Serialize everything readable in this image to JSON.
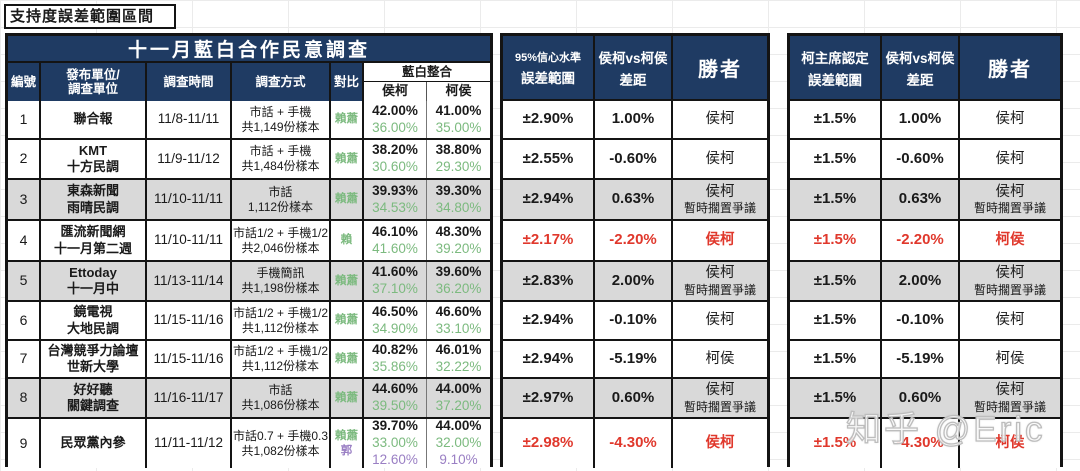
{
  "page_title": "支持度誤差範圍區間",
  "watermark": "知乎 @Eric",
  "colors": {
    "header_bg": "#1f3b63",
    "header_text": "#ffffff",
    "row_gray": "#d9d9d9",
    "green": "#7cba7f",
    "purple": "#9a7fc4",
    "red": "#e0382c"
  },
  "left_table": {
    "title": "十一月藍白合作民意調查",
    "headers": {
      "id": "編號",
      "org_line1": "發布單位/",
      "org_line2": "調查單位",
      "time": "調查時間",
      "method": "調查方式",
      "compare": "對比",
      "group": "藍白整合",
      "col_hou_ko": "侯柯",
      "col_ko_hou": "柯侯"
    }
  },
  "mid_table": {
    "headers": {
      "range_line1": "95%信心水準",
      "range_line2": "誤差範圍",
      "gap_line1": "侯柯vs柯侯",
      "gap_line2": "差距",
      "winner": "勝者"
    }
  },
  "right_table": {
    "headers": {
      "range_line1": "柯主席認定",
      "range_line2": "誤差範圍",
      "gap_line1": "侯柯vs柯侯",
      "gap_line2": "差距",
      "winner": "勝者"
    }
  },
  "rows": [
    {
      "id": "1",
      "org": [
        "聯合報"
      ],
      "time": "11/8-11/11",
      "method": [
        "市話 + 手機",
        "共1,149份樣本"
      ],
      "compare": [
        [
          "賴蕭",
          "green"
        ]
      ],
      "hou_ko": [
        [
          "42.00%",
          "black"
        ],
        [
          "36.00%",
          "green"
        ]
      ],
      "ko_hou": [
        [
          "41.00%",
          "black"
        ],
        [
          "35.00%",
          "green"
        ]
      ],
      "gray": false,
      "ci": {
        "range": "±2.90%",
        "gap": "1.00%",
        "winner": [
          "侯柯"
        ],
        "red": false
      },
      "ko": {
        "range": "±1.5%",
        "gap": "1.00%",
        "winner": [
          "侯柯"
        ],
        "red": false
      }
    },
    {
      "id": "2",
      "org": [
        "KMT",
        "十方民調"
      ],
      "time": "11/9-11/12",
      "method": [
        "市話 + 手機",
        "共1,484份樣本"
      ],
      "compare": [
        [
          "賴蕭",
          "green"
        ]
      ],
      "hou_ko": [
        [
          "38.20%",
          "black"
        ],
        [
          "30.60%",
          "green"
        ]
      ],
      "ko_hou": [
        [
          "38.80%",
          "black"
        ],
        [
          "29.30%",
          "green"
        ]
      ],
      "gray": false,
      "ci": {
        "range": "±2.55%",
        "gap": "-0.60%",
        "winner": [
          "侯柯"
        ],
        "red": false
      },
      "ko": {
        "range": "±1.5%",
        "gap": "-0.60%",
        "winner": [
          "侯柯"
        ],
        "red": false
      }
    },
    {
      "id": "3",
      "org": [
        "東森新聞",
        "雨晴民調"
      ],
      "time": "11/10-11/11",
      "method": [
        "市話",
        "1,112份樣本"
      ],
      "compare": [
        [
          "賴蕭",
          "green"
        ]
      ],
      "hou_ko": [
        [
          "39.93%",
          "black"
        ],
        [
          "34.53%",
          "green"
        ]
      ],
      "ko_hou": [
        [
          "39.30%",
          "black"
        ],
        [
          "34.80%",
          "green"
        ]
      ],
      "gray": true,
      "ci": {
        "range": "±2.94%",
        "gap": "0.63%",
        "winner": [
          "侯柯",
          "暫時擱置爭議"
        ],
        "red": false
      },
      "ko": {
        "range": "±1.5%",
        "gap": "0.63%",
        "winner": [
          "侯柯",
          "暫時擱置爭議"
        ],
        "red": false
      }
    },
    {
      "id": "4",
      "org": [
        "匯流新聞網",
        "十一月第二週"
      ],
      "time": "11/10-11/11",
      "method": [
        "市話1/2 + 手機1/2",
        "共2,046份樣本"
      ],
      "compare": [
        [
          "賴",
          "green"
        ]
      ],
      "hou_ko": [
        [
          "46.10%",
          "black"
        ],
        [
          "41.60%",
          "green"
        ]
      ],
      "ko_hou": [
        [
          "48.30%",
          "black"
        ],
        [
          "39.20%",
          "green"
        ]
      ],
      "gray": false,
      "ci": {
        "range": "±2.17%",
        "gap": "-2.20%",
        "winner": [
          "侯柯"
        ],
        "red": true
      },
      "ko": {
        "range": "±1.5%",
        "gap": "-2.20%",
        "winner": [
          "柯侯"
        ],
        "red": true
      }
    },
    {
      "id": "5",
      "org": [
        "Ettoday",
        "十一月中"
      ],
      "time": "11/13-11/14",
      "method": [
        "手機簡訊",
        "共1,198份樣本"
      ],
      "compare": [
        [
          "賴蕭",
          "green"
        ]
      ],
      "hou_ko": [
        [
          "41.60%",
          "black"
        ],
        [
          "37.10%",
          "green"
        ]
      ],
      "ko_hou": [
        [
          "39.60%",
          "black"
        ],
        [
          "36.20%",
          "green"
        ]
      ],
      "gray": true,
      "ci": {
        "range": "±2.83%",
        "gap": "2.00%",
        "winner": [
          "侯柯",
          "暫時擱置爭議"
        ],
        "red": false
      },
      "ko": {
        "range": "±1.5%",
        "gap": "2.00%",
        "winner": [
          "侯柯",
          "暫時擱置爭議"
        ],
        "red": false
      }
    },
    {
      "id": "6",
      "org": [
        "鏡電視",
        "大地民調"
      ],
      "time": "11/15-11/16",
      "method": [
        "市話1/2 + 手機1/2",
        "共1,112份樣本"
      ],
      "compare": [
        [
          "賴蕭",
          "green"
        ]
      ],
      "hou_ko": [
        [
          "46.50%",
          "black"
        ],
        [
          "34.90%",
          "green"
        ]
      ],
      "ko_hou": [
        [
          "46.60%",
          "black"
        ],
        [
          "33.10%",
          "green"
        ]
      ],
      "gray": false,
      "ci": {
        "range": "±2.94%",
        "gap": "-0.10%",
        "winner": [
          "侯柯"
        ],
        "red": false
      },
      "ko": {
        "range": "±1.5%",
        "gap": "-0.10%",
        "winner": [
          "侯柯"
        ],
        "red": false
      }
    },
    {
      "id": "7",
      "org": [
        "台灣競爭力論壇",
        "世新大學"
      ],
      "time": "11/15-11/16",
      "method": [
        "市話1/2 + 手機1/2",
        "共1,112份樣本"
      ],
      "compare": [
        [
          "賴蕭",
          "green"
        ]
      ],
      "hou_ko": [
        [
          "40.82%",
          "black"
        ],
        [
          "35.86%",
          "green"
        ]
      ],
      "ko_hou": [
        [
          "46.01%",
          "black"
        ],
        [
          "32.22%",
          "green"
        ]
      ],
      "gray": false,
      "ci": {
        "range": "±2.94%",
        "gap": "-5.19%",
        "winner": [
          "柯侯"
        ],
        "red": false
      },
      "ko": {
        "range": "±1.5%",
        "gap": "-5.19%",
        "winner": [
          "柯侯"
        ],
        "red": false
      }
    },
    {
      "id": "8",
      "org": [
        "好好聽",
        "關鍵調查"
      ],
      "time": "11/16-11/17",
      "method": [
        "市話",
        "共1,086份樣本"
      ],
      "compare": [
        [
          "賴蕭",
          "green"
        ]
      ],
      "hou_ko": [
        [
          "44.60%",
          "black"
        ],
        [
          "39.50%",
          "green"
        ]
      ],
      "ko_hou": [
        [
          "44.00%",
          "black"
        ],
        [
          "37.20%",
          "green"
        ]
      ],
      "gray": true,
      "ci": {
        "range": "±2.97%",
        "gap": "0.60%",
        "winner": [
          "侯柯",
          "暫時擱置爭議"
        ],
        "red": false
      },
      "ko": {
        "range": "±1.5%",
        "gap": "0.60%",
        "winner": [
          "侯柯",
          "暫時擱置爭議"
        ],
        "red": false
      }
    },
    {
      "id": "9",
      "org": [
        "民眾黨內參"
      ],
      "time": "11/11-11/12",
      "method": [
        "市話0.7 + 手機0.3",
        "共1,082份樣本"
      ],
      "compare": [
        [
          "賴蕭",
          "green"
        ],
        [
          "郭",
          "purple"
        ]
      ],
      "hou_ko": [
        [
          "39.70%",
          "black"
        ],
        [
          "33.00%",
          "green"
        ],
        [
          "12.60%",
          "purple"
        ]
      ],
      "ko_hou": [
        [
          "44.00%",
          "black"
        ],
        [
          "32.00%",
          "green"
        ],
        [
          "9.10%",
          "purple"
        ]
      ],
      "gray": false,
      "ci": {
        "range": "±2.98%",
        "gap": "-4.30%",
        "winner": [
          "侯柯"
        ],
        "red": true
      },
      "ko": {
        "range": "±1.5%",
        "gap": "-4.30%",
        "winner": [
          "柯侯"
        ],
        "red": true
      }
    }
  ]
}
